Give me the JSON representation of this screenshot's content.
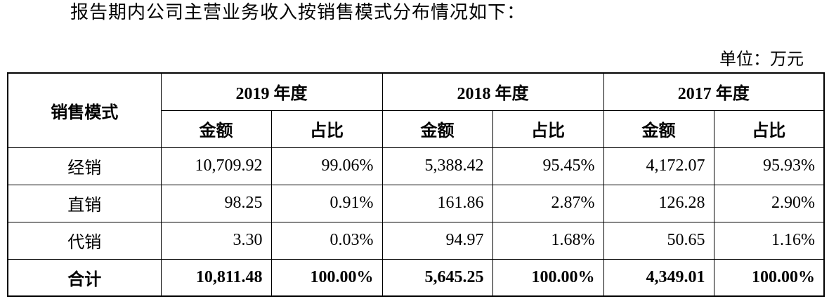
{
  "intro": "报告期内公司主营业务收入按销售模式分布情况如下：",
  "unit": "单位：万元",
  "table": {
    "corner": "销售模式",
    "years": [
      "2019 年度",
      "2018 年度",
      "2017 年度"
    ],
    "subheaders": [
      "金额",
      "占比",
      "金额",
      "占比",
      "金额",
      "占比"
    ],
    "rows": [
      [
        "经销",
        "10,709.92",
        "99.06%",
        "5,388.42",
        "95.45%",
        "4,172.07",
        "95.93%"
      ],
      [
        "直销",
        "98.25",
        "0.91%",
        "161.86",
        "2.87%",
        "126.28",
        "2.90%"
      ],
      [
        "代销",
        "3.30",
        "0.03%",
        "94.97",
        "1.68%",
        "50.65",
        "1.16%"
      ],
      [
        "合计",
        "10,811.48",
        "100.00%",
        "5,645.25",
        "100.00%",
        "4,349.01",
        "100.00%"
      ]
    ]
  }
}
